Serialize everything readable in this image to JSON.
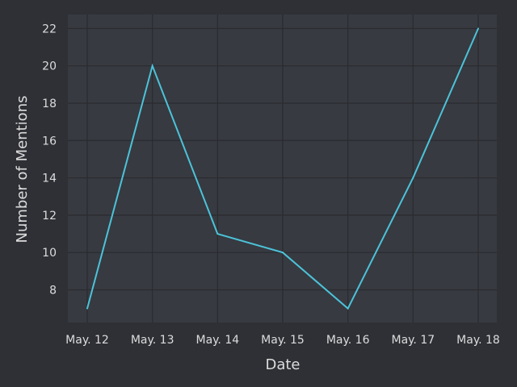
{
  "chart_data": {
    "type": "line",
    "title": "",
    "xlabel": "Date",
    "ylabel": "Number of Mentions",
    "categories": [
      "May. 12",
      "May. 13",
      "May. 14",
      "May. 15",
      "May. 16",
      "May. 17",
      "May. 18"
    ],
    "series": [
      {
        "values": [
          7,
          20,
          11,
          10,
          7,
          14,
          22
        ]
      }
    ],
    "ylim": [
      6.25,
      22.75
    ],
    "yticks": [
      8,
      10,
      12,
      14,
      16,
      18,
      20,
      22
    ],
    "grid": true,
    "legend": "none",
    "colors": {
      "background": "#2e3035",
      "plot_area": "#373a41",
      "grid": "#2a2b2f",
      "line": "#4cc3d9",
      "text": "#dcdcdc"
    }
  }
}
